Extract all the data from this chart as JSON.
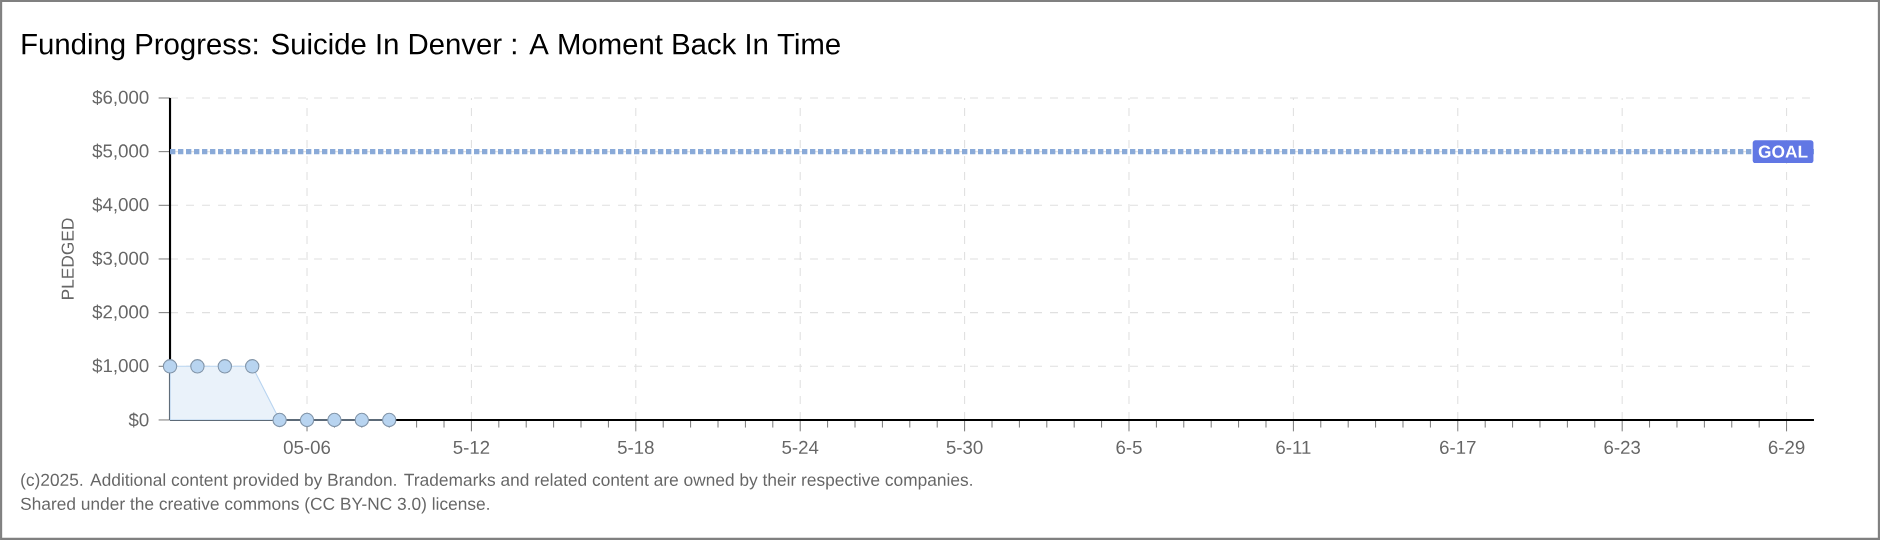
{
  "chart_data": {
    "type": "area",
    "title": "Funding Progress: Suicide In Denver : A Moment Back In Time",
    "ylabel": "PLEDGED",
    "x": [
      "2025-05-01",
      "2025-05-02",
      "2025-05-03",
      "2025-05-04",
      "2025-05-05",
      "2025-05-06",
      "2025-05-07",
      "2025-05-08",
      "2025-05-09"
    ],
    "values": [
      1000,
      1000,
      1000,
      1000,
      0,
      0,
      0,
      0,
      0
    ],
    "color": "#b8d4f0",
    "marker": "circle",
    "grid": true,
    "xlim": [
      "2025-05-01",
      "2025-06-30"
    ],
    "xticks": [
      {
        "value": "2025-05-06",
        "label": "05-06"
      },
      {
        "value": "2025-05-12",
        "label": "5-12"
      },
      {
        "value": "2025-05-18",
        "label": "5-18"
      },
      {
        "value": "2025-05-24",
        "label": "5-24"
      },
      {
        "value": "2025-05-30",
        "label": "5-30"
      },
      {
        "value": "2025-06-05",
        "label": "6-5"
      },
      {
        "value": "2025-06-11",
        "label": "6-11"
      },
      {
        "value": "2025-06-17",
        "label": "6-17"
      },
      {
        "value": "2025-06-23",
        "label": "6-23"
      },
      {
        "value": "2025-06-29",
        "label": "6-29"
      }
    ],
    "ylim": [
      0,
      6000
    ],
    "yticks": [
      {
        "value": 0,
        "label": "$0"
      },
      {
        "value": 1000,
        "label": "$1,000"
      },
      {
        "value": 2000,
        "label": "$2,000"
      },
      {
        "value": 3000,
        "label": "$3,000"
      },
      {
        "value": 4000,
        "label": "$4,000"
      },
      {
        "value": 5000,
        "label": "$5,000"
      },
      {
        "value": 6000,
        "label": "$6,000"
      }
    ],
    "ref_lines": [
      {
        "axis": "y",
        "value": 5000,
        "label": "GOAL",
        "color": "#8aaad8",
        "line_style": "dotted"
      }
    ],
    "annotations": [
      "(c)2025. Additional content provided by Brandon. Trademarks and related content are owned by their respective companies.",
      "Shared under the creative commons (CC BY-NC 3.0) license."
    ]
  }
}
